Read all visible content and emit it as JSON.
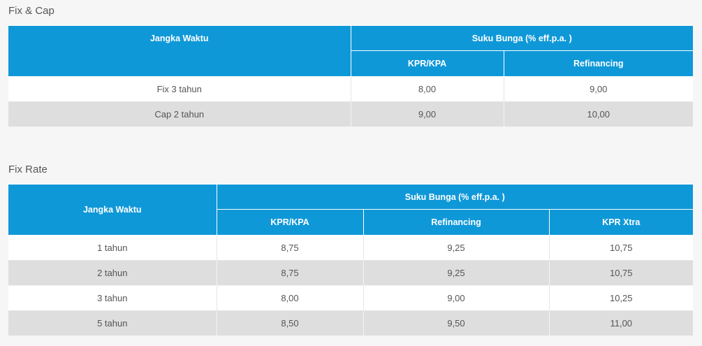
{
  "fixcap": {
    "title": "Fix & Cap",
    "header": {
      "jangka_waktu": "Jangka Waktu",
      "suku_bunga": "Suku Bunga (% eff.p.a. )",
      "kpr_kpa": "KPR/KPA",
      "refinancing": "Refinancing"
    },
    "rows": [
      {
        "jangka": "Fix 3 tahun",
        "kpr_kpa": "8,00",
        "refinancing": "9,00"
      },
      {
        "jangka": "Cap 2 tahun",
        "kpr_kpa": "9,00",
        "refinancing": "10,00"
      }
    ]
  },
  "fixrate": {
    "title": "Fix Rate",
    "header": {
      "jangka_waktu": "Jangka Waktu",
      "suku_bunga": "Suku Bunga (% eff.p.a. )",
      "kpr_kpa": "KPR/KPA",
      "refinancing": "Refinancing",
      "kpr_xtra": "KPR Xtra"
    },
    "rows": [
      {
        "jangka": "1 tahun",
        "kpr_kpa": "8,75",
        "refinancing": "9,25",
        "kpr_xtra": "10,75"
      },
      {
        "jangka": "2 tahun",
        "kpr_kpa": "8,75",
        "refinancing": "9,25",
        "kpr_xtra": "10,75"
      },
      {
        "jangka": "3 tahun",
        "kpr_kpa": "8,00",
        "refinancing": "9,00",
        "kpr_xtra": "10,25"
      },
      {
        "jangka": "5 tahun",
        "kpr_kpa": "8,50",
        "refinancing": "9,50",
        "kpr_xtra": "11,00"
      }
    ]
  },
  "colors": {
    "header_blue": "#0f98d8",
    "row_alt": "#dedede",
    "background": "#f6f6f6"
  }
}
